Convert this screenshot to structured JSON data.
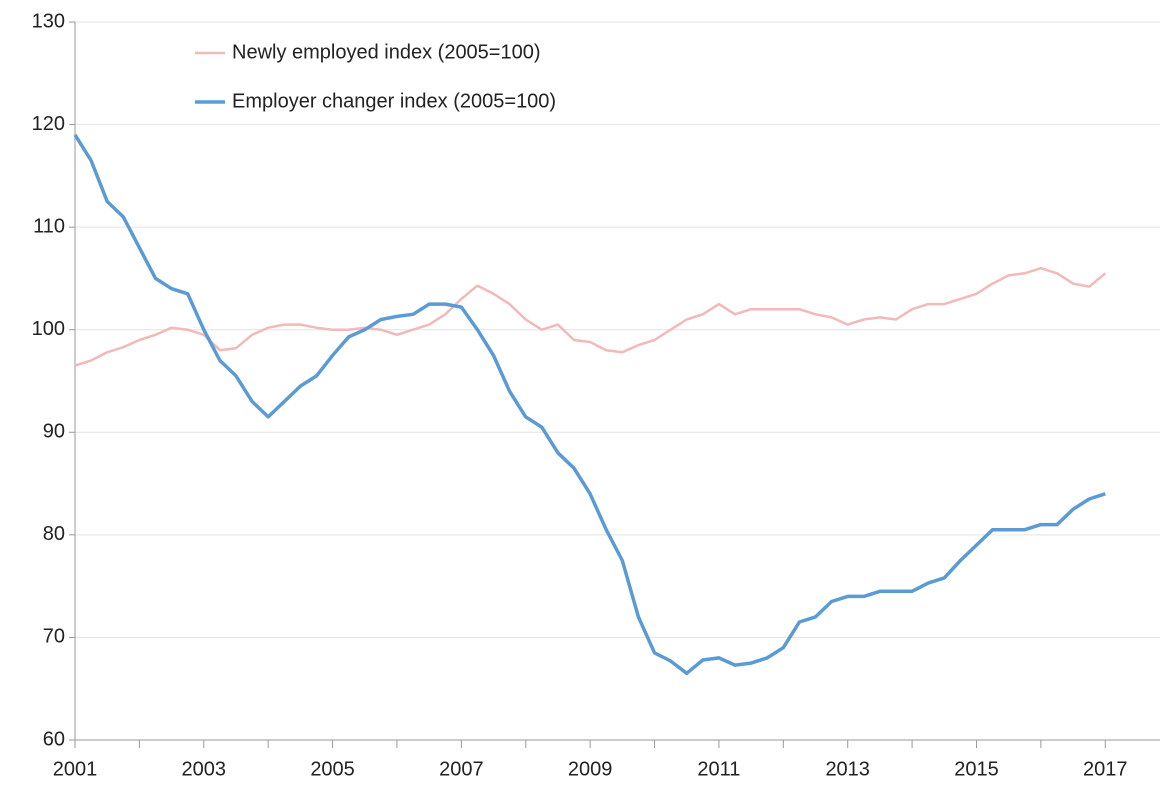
{
  "chart_data": {
    "type": "line",
    "x": [
      2001.0,
      2001.25,
      2001.5,
      2001.75,
      2002.0,
      2002.25,
      2002.5,
      2002.75,
      2003.0,
      2003.25,
      2003.5,
      2003.75,
      2004.0,
      2004.25,
      2004.5,
      2004.75,
      2005.0,
      2005.25,
      2005.5,
      2005.75,
      2006.0,
      2006.25,
      2006.5,
      2006.75,
      2007.0,
      2007.25,
      2007.5,
      2007.75,
      2008.0,
      2008.25,
      2008.5,
      2008.75,
      2009.0,
      2009.25,
      2009.5,
      2009.75,
      2010.0,
      2010.25,
      2010.5,
      2010.75,
      2011.0,
      2011.25,
      2011.5,
      2011.75,
      2012.0,
      2012.25,
      2012.5,
      2012.75,
      2013.0,
      2013.25,
      2013.5,
      2013.75,
      2014.0,
      2014.25,
      2014.5,
      2014.75,
      2015.0,
      2015.25,
      2015.5,
      2015.75,
      2016.0,
      2016.25,
      2016.5,
      2016.75,
      2017.0
    ],
    "series": [
      {
        "name": "Newly employed index (2005=100)",
        "color": "#f2b9b9",
        "width": 2.5,
        "values": [
          96.5,
          97,
          97.8,
          98.3,
          99,
          99.5,
          100.2,
          100,
          99.5,
          98,
          98.2,
          99.5,
          100.2,
          100.5,
          100.5,
          100.2,
          100,
          100,
          100.2,
          100,
          99.5,
          100,
          100.5,
          101.5,
          103,
          104.3,
          103.5,
          102.5,
          101,
          100,
          100.5,
          99,
          98.8,
          98,
          97.8,
          98.5,
          99,
          100,
          101,
          101.5,
          102.5,
          101.5,
          102,
          102,
          102,
          102,
          101.5,
          101.2,
          100.5,
          101,
          101.2,
          101,
          102,
          102.5,
          102.5,
          103,
          103.5,
          104.5,
          105.3,
          105.5,
          106,
          105.5,
          104.5,
          104.2,
          105.5
        ]
      },
      {
        "name": "Employer changer index (2005=100)",
        "color": "#5b9bd5",
        "width": 3.5,
        "values": [
          119,
          116.5,
          112.5,
          111,
          108,
          105,
          104,
          103.5,
          100,
          97,
          95.5,
          93,
          91.5,
          93,
          94.5,
          95.5,
          97.5,
          99.3,
          100,
          101,
          101.3,
          101.5,
          102.5,
          102.5,
          102.2,
          100,
          97.5,
          94,
          91.5,
          90.5,
          88,
          86.5,
          84,
          80.5,
          77.5,
          72,
          68.5,
          67.7,
          66.5,
          67.8,
          68,
          67.3,
          67.5,
          68,
          69,
          71.5,
          72,
          73.5,
          74,
          74,
          74.5,
          74.5,
          74.5,
          75.3,
          75.8,
          77.5,
          79,
          80.5,
          80.5,
          80.5,
          81,
          81,
          82.5,
          83.5,
          84
        ]
      }
    ],
    "xlim": [
      2001,
      2017.85
    ],
    "xticks": [
      2001,
      2003,
      2005,
      2007,
      2009,
      2011,
      2013,
      2015,
      2017
    ],
    "xminorticks": [
      2002,
      2004,
      2006,
      2008,
      2010,
      2012,
      2014,
      2016
    ],
    "ylim": [
      60,
      130
    ],
    "yticks": [
      60,
      70,
      80,
      90,
      100,
      110,
      120,
      130
    ],
    "grid": true
  }
}
